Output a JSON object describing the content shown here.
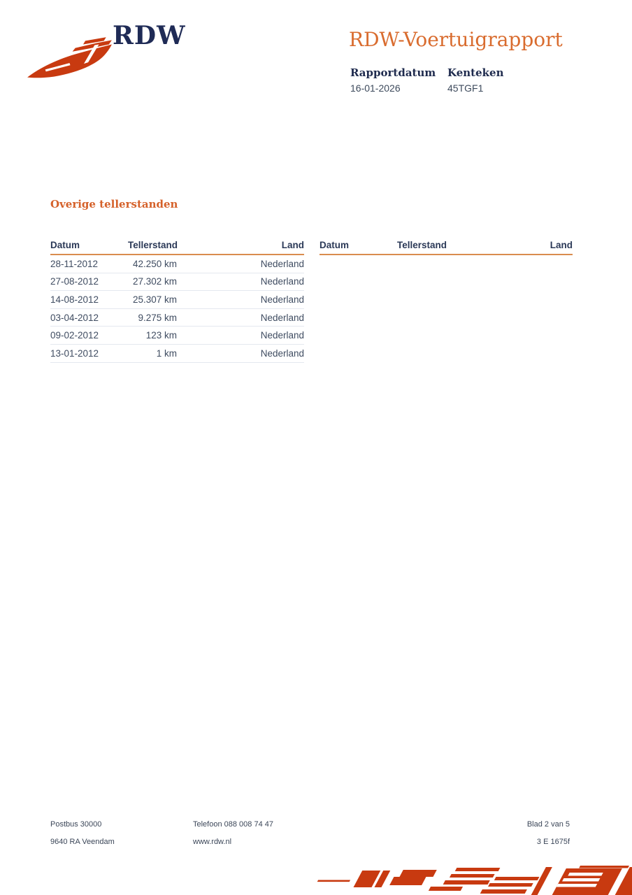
{
  "colors": {
    "logo_red": "#c83a10",
    "title_orange": "#d96c2f",
    "heading_orange": "#d5612a",
    "rule_orange": "#d98c4e",
    "navy": "#1f2b56",
    "body_text": "#3f4c61"
  },
  "header": {
    "logo_text": "RDW",
    "title": "RDW-Voertuigrapport",
    "report_date_label": "Rapportdatum",
    "report_date_value": "16-01-2026",
    "license_label": "Kenteken",
    "license_value": "45TGF1"
  },
  "section_heading": "Overige tellerstanden",
  "table": {
    "columns": {
      "datum": "Datum",
      "tellerstand": "Tellerstand",
      "land": "Land"
    },
    "left_rows": [
      {
        "datum": "28-11-2012",
        "tellerstand": "42.250 km",
        "land": "Nederland"
      },
      {
        "datum": "27-08-2012",
        "tellerstand": "27.302 km",
        "land": "Nederland"
      },
      {
        "datum": "14-08-2012",
        "tellerstand": "25.307 km",
        "land": "Nederland"
      },
      {
        "datum": "03-04-2012",
        "tellerstand": "9.275 km",
        "land": "Nederland"
      },
      {
        "datum": "09-02-2012",
        "tellerstand": "123 km",
        "land": "Nederland"
      },
      {
        "datum": "13-01-2012",
        "tellerstand": "1 km",
        "land": "Nederland"
      }
    ],
    "right_rows": []
  },
  "footer": {
    "address_line1": "Postbus 30000",
    "address_line2": "9640 RA Veendam",
    "phone": "Telefoon 088 008 74 47",
    "website": "www.rdw.nl",
    "page_number": "Blad 2 van 5",
    "doc_code": "3 E 1675f"
  }
}
